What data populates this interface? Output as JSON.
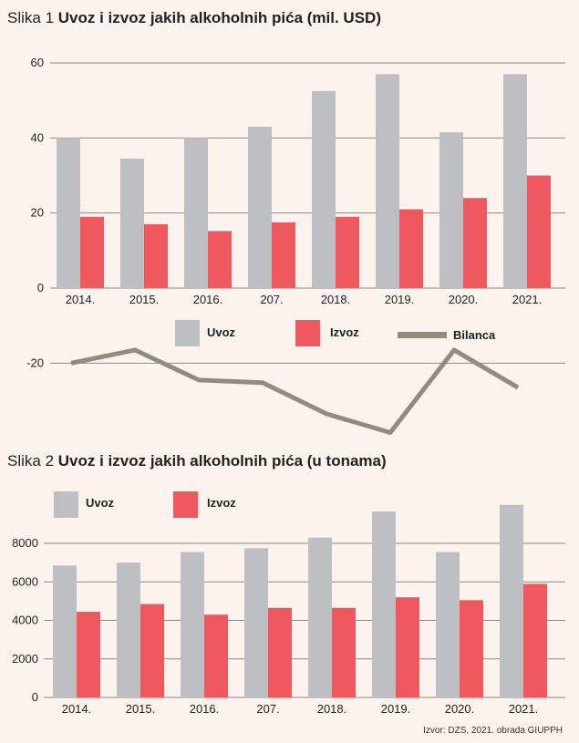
{
  "chart_data": [
    {
      "type": "bar",
      "title_prefix": "Slika 1",
      "title": "Uvoz i izvoz jakih alkoholnih pića (mil. USD)",
      "categories": [
        "2014.",
        "2015.",
        "2016.",
        "207.",
        "2018.",
        "2019.",
        "2020.",
        "2021."
      ],
      "series": [
        {
          "name": "Uvoz",
          "type": "bar",
          "color": "#bdbfc3",
          "values": [
            40,
            34.5,
            40,
            43,
            52.5,
            57,
            41.5,
            57
          ]
        },
        {
          "name": "Izvoz",
          "type": "bar",
          "color": "#f0585f",
          "values": [
            19,
            17,
            15.2,
            17.5,
            19,
            21,
            24,
            30
          ]
        },
        {
          "name": "Bilanca",
          "type": "line",
          "color": "#918c7e",
          "values": [
            -20,
            -16.5,
            -24.5,
            -25.2,
            -33.5,
            -38.5,
            -16.5,
            -26.5
          ]
        }
      ],
      "yticks": [
        60,
        40,
        20,
        0,
        -20
      ],
      "ylim": [
        -40,
        62
      ],
      "grid": true,
      "legend": "bottom"
    },
    {
      "type": "bar",
      "title_prefix": "Slika 2",
      "title": "Uvoz i izvoz jakih alkoholnih pića (u tonama)",
      "categories": [
        "2014.",
        "2015.",
        "2016.",
        "207.",
        "2018.",
        "2019.",
        "2020.",
        "2021."
      ],
      "series": [
        {
          "name": "Uvoz",
          "color": "#bdbfc3",
          "values": [
            6850,
            7000,
            7550,
            7750,
            8300,
            9650,
            7550,
            10000
          ]
        },
        {
          "name": "Izvoz",
          "color": "#f0585f",
          "values": [
            4450,
            4850,
            4300,
            4650,
            4650,
            5200,
            5050,
            5900
          ]
        }
      ],
      "yticks": [
        8000,
        6000,
        4000,
        2000,
        0
      ],
      "ylim": [
        0,
        10000
      ],
      "grid": true,
      "legend": "top-left"
    }
  ],
  "source": "Izvor: DZS, 2021. obrada GIUPPH"
}
